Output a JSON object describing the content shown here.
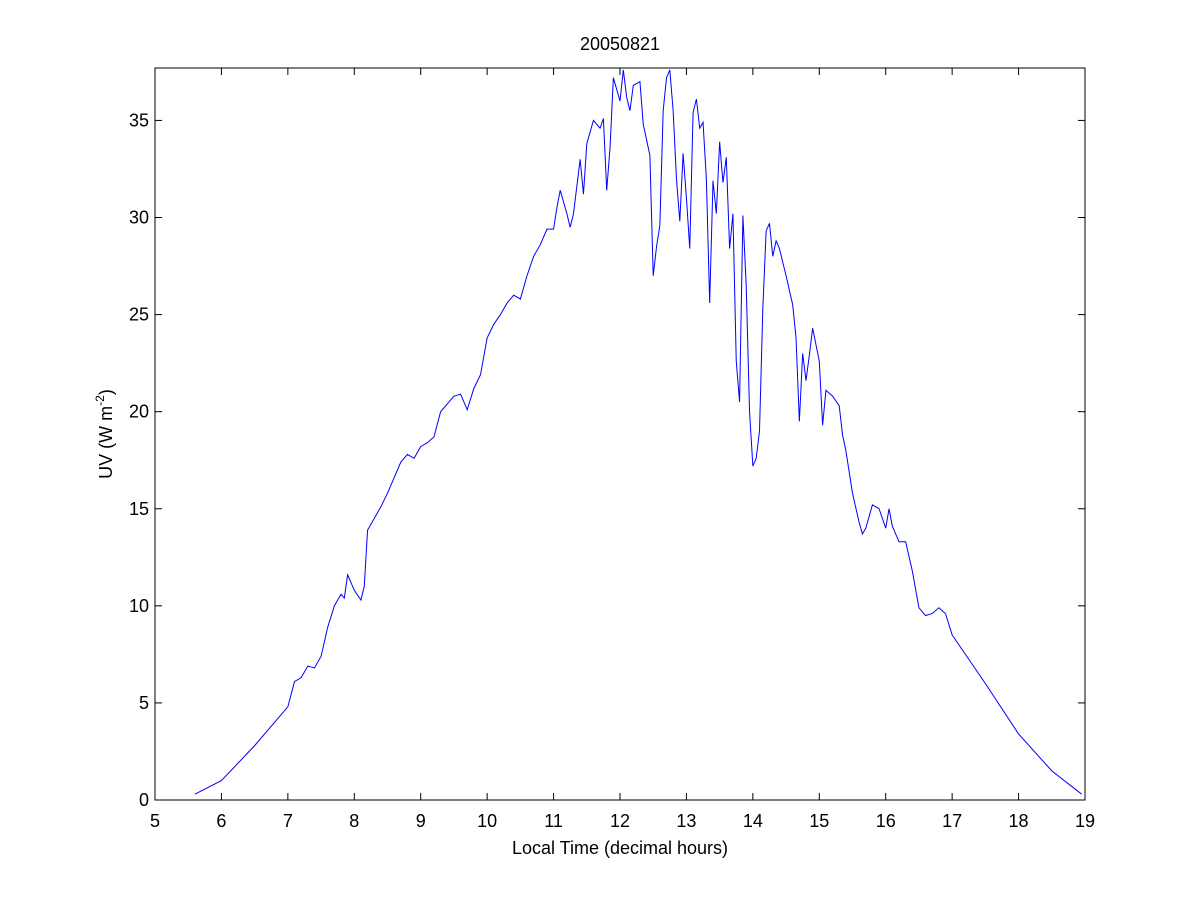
{
  "chart_data": {
    "type": "line",
    "title": "20050821",
    "xlabel": "Local Time (decimal hours)",
    "ylabel": {
      "text": "UV (W m",
      "sup": "-2",
      "tail": ")"
    },
    "xlim": [
      5,
      19
    ],
    "xticks": [
      5,
      6,
      7,
      8,
      9,
      10,
      11,
      12,
      13,
      14,
      15,
      16,
      17,
      18,
      19
    ],
    "ylim": [
      0,
      37.7
    ],
    "yticks": [
      0,
      5,
      10,
      15,
      20,
      25,
      30,
      35
    ],
    "x": [
      5.6,
      6.0,
      6.5,
      7.0,
      7.1,
      7.2,
      7.3,
      7.4,
      7.5,
      7.6,
      7.7,
      7.8,
      7.85,
      7.9,
      8.0,
      8.1,
      8.15,
      8.2,
      8.3,
      8.4,
      8.5,
      8.6,
      8.7,
      8.8,
      8.9,
      9.0,
      9.1,
      9.2,
      9.3,
      9.4,
      9.5,
      9.6,
      9.7,
      9.8,
      9.9,
      10.0,
      10.1,
      10.2,
      10.3,
      10.4,
      10.5,
      10.6,
      10.7,
      10.8,
      10.9,
      11.0,
      11.05,
      11.1,
      11.2,
      11.25,
      11.3,
      11.35,
      11.4,
      11.45,
      11.5,
      11.6,
      11.7,
      11.75,
      11.8,
      11.85,
      11.9,
      12.0,
      12.05,
      12.1,
      12.15,
      12.2,
      12.3,
      12.35,
      12.45,
      12.5,
      12.55,
      12.6,
      12.65,
      12.7,
      12.75,
      12.8,
      12.85,
      12.9,
      12.95,
      13.0,
      13.05,
      13.1,
      13.15,
      13.2,
      13.25,
      13.3,
      13.35,
      13.4,
      13.45,
      13.5,
      13.55,
      13.6,
      13.65,
      13.7,
      13.75,
      13.8,
      13.85,
      13.9,
      13.95,
      14.0,
      14.05,
      14.1,
      14.15,
      14.2,
      14.25,
      14.3,
      14.35,
      14.4,
      14.5,
      14.6,
      14.65,
      14.7,
      14.75,
      14.8,
      14.85,
      14.9,
      15.0,
      15.05,
      15.1,
      15.2,
      15.3,
      15.35,
      15.4,
      15.5,
      15.6,
      15.65,
      15.7,
      15.8,
      15.9,
      16.0,
      16.05,
      16.1,
      16.2,
      16.3,
      16.4,
      16.5,
      16.6,
      16.7,
      16.8,
      16.9,
      17.0,
      17.5,
      18.0,
      18.5,
      18.95
    ],
    "series": [
      {
        "color": "#0000ff",
        "values": [
          0.3,
          1.0,
          2.8,
          4.8,
          6.1,
          6.3,
          6.9,
          6.8,
          7.4,
          8.9,
          10.0,
          10.6,
          10.4,
          11.6,
          10.8,
          10.3,
          11.0,
          13.9,
          14.5,
          15.1,
          15.8,
          16.6,
          17.4,
          17.8,
          17.6,
          18.2,
          18.4,
          18.7,
          20.0,
          20.4,
          20.8,
          20.9,
          20.1,
          21.2,
          21.9,
          23.8,
          24.5,
          25.0,
          25.6,
          26.0,
          25.8,
          27.0,
          28.0,
          28.6,
          29.4,
          29.4,
          30.5,
          31.4,
          30.2,
          29.5,
          30.2,
          31.6,
          33.0,
          31.2,
          33.8,
          35.0,
          34.6,
          35.1,
          31.4,
          33.6,
          37.2,
          36.0,
          37.6,
          36.2,
          35.5,
          36.8,
          37.0,
          34.8,
          33.2,
          27.0,
          28.5,
          29.6,
          35.5,
          37.2,
          37.6,
          35.5,
          32.0,
          29.8,
          33.3,
          31.0,
          28.4,
          35.4,
          36.1,
          34.6,
          34.9,
          32.0,
          25.6,
          31.9,
          30.2,
          33.9,
          31.8,
          33.1,
          28.4,
          30.2,
          22.6,
          20.5,
          30.1,
          26.5,
          20.0,
          17.2,
          17.6,
          19.0,
          25.3,
          29.3,
          29.7,
          28.0,
          28.8,
          28.4,
          27.0,
          25.5,
          23.8,
          19.5,
          23.0,
          21.6,
          22.9,
          24.3,
          22.6,
          19.3,
          21.1,
          20.8,
          20.3,
          18.8,
          18.0,
          15.8,
          14.3,
          13.7,
          14.0,
          15.2,
          15.0,
          14.0,
          15.0,
          14.1,
          13.3,
          13.3,
          11.8,
          9.9,
          9.5,
          9.6,
          9.9,
          9.6,
          8.5,
          6.0,
          3.4,
          1.5,
          0.3
        ]
      }
    ]
  }
}
